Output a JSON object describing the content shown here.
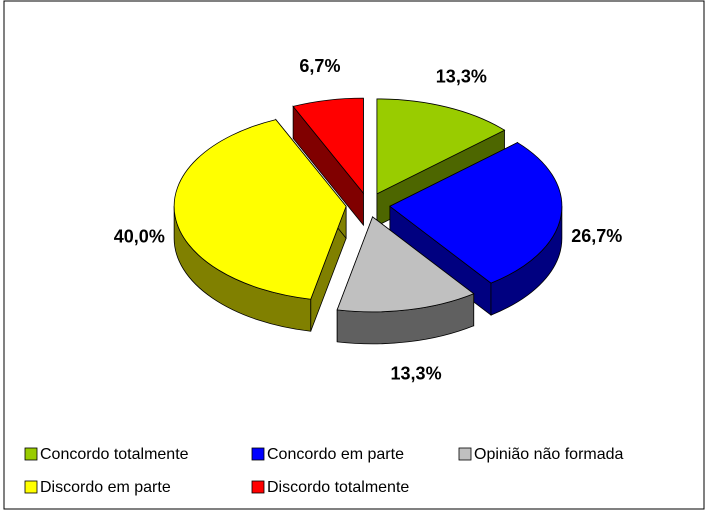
{
  "chart_data": {
    "type": "pie",
    "categories": [
      "Concordo totalmente",
      "Concordo em parte",
      "Opinião não formada",
      "Discordo em parte",
      "Discordo totalmente"
    ],
    "values": [
      13.3,
      26.7,
      13.3,
      40.0,
      6.7
    ],
    "value_labels": [
      "13,3%",
      "26,7%",
      "13,3%",
      "40,0%",
      "6,7%"
    ],
    "colors": [
      "#99cc00",
      "#0000ff",
      "#c0c0c0",
      "#ffff00",
      "#ff0000"
    ],
    "legend": "bottom"
  }
}
